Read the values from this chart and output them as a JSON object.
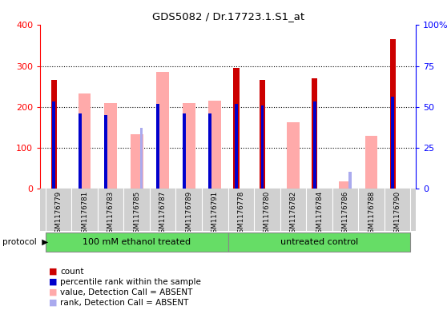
{
  "title": "GDS5082 / Dr.17723.1.S1_at",
  "samples": [
    "GSM1176779",
    "GSM1176781",
    "GSM1176783",
    "GSM1176785",
    "GSM1176787",
    "GSM1176789",
    "GSM1176791",
    "GSM1176778",
    "GSM1176780",
    "GSM1176782",
    "GSM1176784",
    "GSM1176786",
    "GSM1176788",
    "GSM1176790"
  ],
  "count_red": [
    265,
    0,
    0,
    0,
    0,
    0,
    0,
    295,
    265,
    0,
    270,
    0,
    0,
    365
  ],
  "percentile_blue_pct": [
    53,
    46,
    45,
    0,
    52,
    46,
    46,
    52,
    51,
    0,
    53,
    0,
    0,
    56
  ],
  "value_pink": [
    0,
    232,
    210,
    133,
    285,
    210,
    215,
    0,
    0,
    162,
    0,
    17,
    128,
    0
  ],
  "rank_lightblue_pct": [
    0,
    0,
    0,
    37,
    0,
    0,
    0,
    0,
    0,
    0,
    0,
    10,
    0,
    0
  ],
  "ylim_left": [
    0,
    400
  ],
  "ylim_right": [
    0,
    100
  ],
  "yticks_left": [
    0,
    100,
    200,
    300,
    400
  ],
  "yticks_right": [
    0,
    25,
    50,
    75,
    100
  ],
  "ytick_labels_right": [
    "0",
    "25",
    "50",
    "75",
    "100%"
  ],
  "groups": [
    {
      "label": "100 mM ethanol treated",
      "start": 0,
      "end": 6
    },
    {
      "label": "untreated control",
      "start": 7,
      "end": 13
    }
  ],
  "protocol_label": "protocol",
  "legend_labels": [
    "count",
    "percentile rank within the sample",
    "value, Detection Call = ABSENT",
    "rank, Detection Call = ABSENT"
  ],
  "red_color": "#cc0000",
  "blue_color": "#0000cc",
  "pink_color": "#ffaaaa",
  "lightblue_color": "#aaaaee",
  "group_color": "#66dd66",
  "bg_xtick": "#d0d0d0",
  "blue_bar_width": 0.12,
  "red_bar_width": 0.22,
  "pink_bar_width": 0.22,
  "lightblue_bar_width": 0.12
}
